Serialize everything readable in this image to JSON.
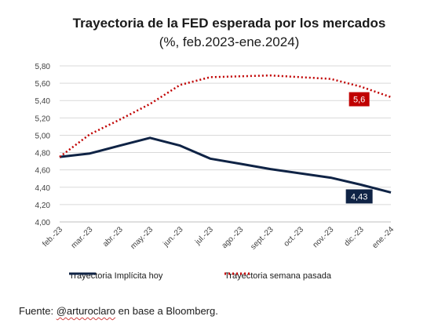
{
  "chart_data": {
    "type": "line",
    "title": "Trayectoria  de la FED esperada por los mercados",
    "subtitle": "(%, feb.2023-ene.2024)",
    "categories": [
      "feb.-23",
      "mar.-23",
      "abr.-23",
      "may.-23",
      "jun.-23",
      "jul.-23",
      "ago.-23",
      "sept.-23",
      "oct.-23",
      "nov.-23",
      "dic.-23",
      "ene.-24"
    ],
    "ylim": [
      4.0,
      5.8
    ],
    "yticks": [
      "4,00",
      "4,20",
      "4,40",
      "4,60",
      "4,80",
      "5,00",
      "5,20",
      "5,40",
      "5,60",
      "5,80"
    ],
    "grid": true,
    "legend_position": "bottom",
    "series": [
      {
        "name": "Trayectoria Implícita hoy",
        "color": "#0f2345",
        "style": "solid",
        "values": [
          4.75,
          4.79,
          4.88,
          4.97,
          4.88,
          4.73,
          4.67,
          4.61,
          4.56,
          4.51,
          4.43,
          4.34
        ]
      },
      {
        "name": "Trayectoria semana pasada",
        "color": "#c00000",
        "style": "dotted",
        "values": [
          4.75,
          5.01,
          5.18,
          5.36,
          5.58,
          5.67,
          5.68,
          5.69,
          5.67,
          5.65,
          5.56,
          5.44
        ]
      }
    ],
    "annotations": [
      {
        "text": "5,6",
        "series": 1,
        "index": 10,
        "color": "#c00000"
      },
      {
        "text": "4,43",
        "series": 0,
        "index": 10,
        "color": "#0f2345"
      }
    ]
  },
  "source": {
    "prefix": "Fuente: ",
    "handle": "@arturoclaro",
    "suffix": " en base a Bloomberg."
  }
}
